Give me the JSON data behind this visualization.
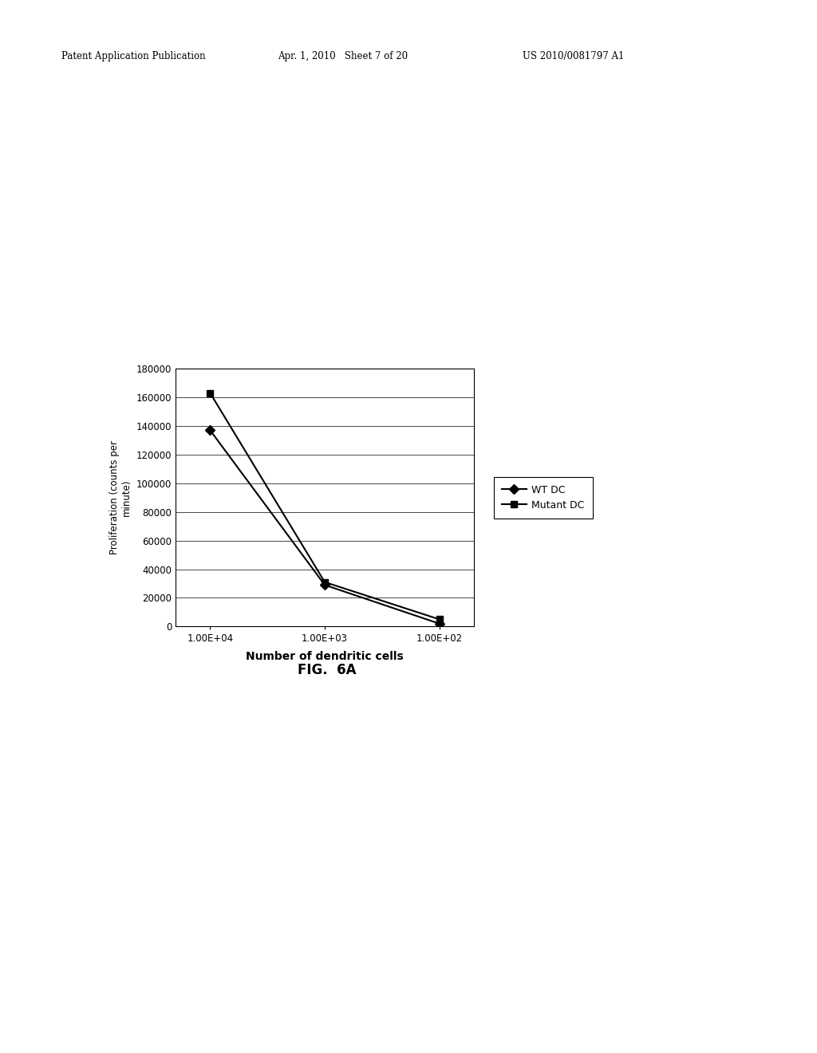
{
  "header_left": "Patent Application Publication",
  "header_center": "Apr. 1, 2010   Sheet 7 of 20",
  "header_right": "US 2010/0081797 A1",
  "x_labels": [
    "1.00E+04",
    "1.00E+03",
    "1.00E+02"
  ],
  "wt_dc_values": [
    137000,
    29000,
    2000
  ],
  "mutant_dc_values": [
    163000,
    31000,
    5000
  ],
  "xlabel": "Number of dendritic cells",
  "ylabel": "Proliferation (counts per\nminute)",
  "legend_wt": "WT DC",
  "legend_mutant": "Mutant DC",
  "fig_label": "FIG.  6A",
  "ylim": [
    0,
    180000
  ],
  "yticks": [
    0,
    20000,
    40000,
    60000,
    80000,
    100000,
    120000,
    140000,
    160000,
    180000
  ],
  "background_color": "#ffffff",
  "line_color": "#000000"
}
